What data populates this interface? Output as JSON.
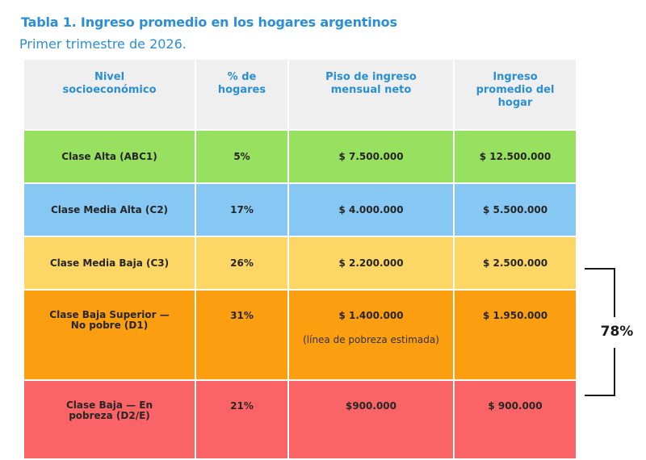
{
  "title": "Tabla 1. Ingreso promedio en los hogares argentinos",
  "subtitle": "Primer trimestre de 2026.",
  "headers": [
    "Nivel socioeconómico",
    "% de hogares",
    "Piso de ingreso mensual neto",
    "Ingreso promedio del hogar"
  ],
  "rows": [
    {
      "label": "Clase Alta (ABC1)",
      "pct": "5%",
      "floor": "$ 7.500.000",
      "avg": "$ 12.500.000",
      "color": "#98e05f"
    },
    {
      "label": "Clase Media Alta (C2)",
      "pct": "17%",
      "floor": "$ 4.000.000",
      "avg": "$ 5.500.000",
      "color": "#86c7f3"
    },
    {
      "label": "Clase Media Baja (C3)",
      "pct": "26%",
      "floor": "$ 2.200.000",
      "avg": "$ 2.500.000",
      "color": "#fcd765"
    },
    {
      "label": "Clase Baja Superior — No pobre (D1)",
      "pct": "31%",
      "floor": "$ 1.400.000",
      "note": "(línea de pobreza estimada)",
      "avg": "$ 1.950.000",
      "color": "#fb9e0f"
    },
    {
      "label": "Clase Baja — En pobreza (D2/E)",
      "pct": "21%",
      "floor": "$900.000",
      "avg": "$ 900.000",
      "color": "#fb6466"
    }
  ],
  "bracket_label": "78%",
  "colors": {
    "title": "#2a8fd6",
    "header_bg": "#efefef"
  }
}
